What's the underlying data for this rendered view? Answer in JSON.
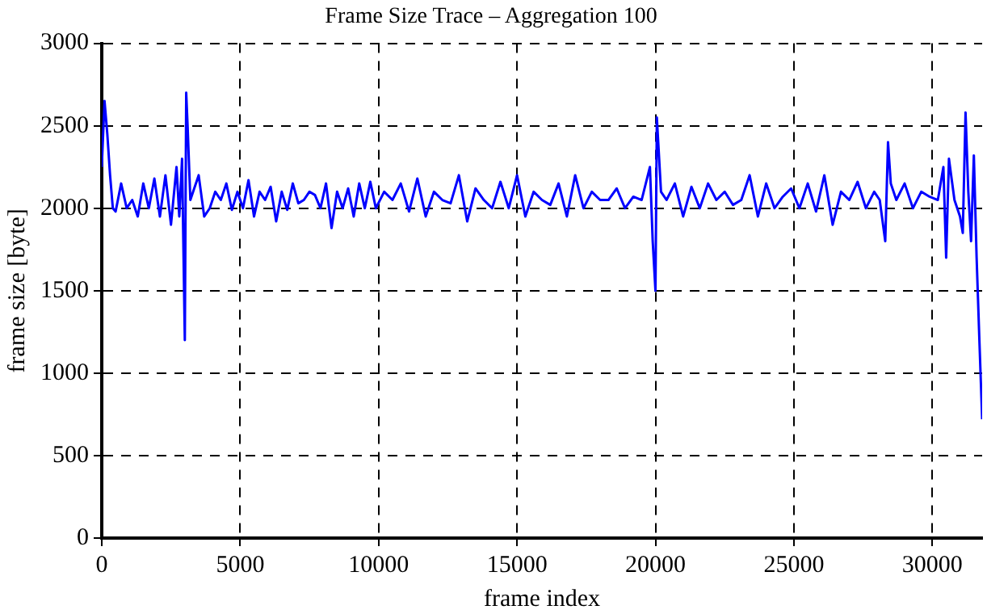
{
  "chart_data": {
    "type": "line",
    "title": "Frame Size Trace – Aggregation 100",
    "xlabel": "frame index",
    "ylabel": "frame size [byte]",
    "xlim": [
      0,
      31800
    ],
    "ylim": [
      0,
      3000
    ],
    "xticks": [
      0,
      5000,
      10000,
      15000,
      20000,
      25000,
      30000
    ],
    "yticks": [
      0,
      500,
      1000,
      1500,
      2000,
      2500,
      3000
    ],
    "grid": true,
    "marker": "none",
    "line_style": "solid",
    "series": [
      {
        "color": "#0000ff",
        "x": [
          0,
          100,
          200,
          300,
          400,
          500,
          700,
          900,
          1100,
          1300,
          1500,
          1700,
          1900,
          2100,
          2300,
          2500,
          2700,
          2800,
          2900,
          3000,
          3050,
          3100,
          3200,
          3300,
          3500,
          3700,
          3900,
          4100,
          4300,
          4500,
          4700,
          4900,
          5100,
          5300,
          5500,
          5700,
          5900,
          6100,
          6300,
          6500,
          6700,
          6900,
          7100,
          7300,
          7500,
          7700,
          7900,
          8100,
          8300,
          8500,
          8700,
          8900,
          9100,
          9300,
          9500,
          9700,
          9900,
          10200,
          10500,
          10800,
          11100,
          11400,
          11700,
          12000,
          12300,
          12600,
          12900,
          13200,
          13500,
          13800,
          14100,
          14400,
          14700,
          15000,
          15300,
          15600,
          15900,
          16200,
          16500,
          16800,
          17100,
          17400,
          17700,
          18000,
          18300,
          18600,
          18900,
          19200,
          19500,
          19800,
          19900,
          20000,
          20050,
          20100,
          20200,
          20400,
          20700,
          21000,
          21300,
          21600,
          21900,
          22200,
          22500,
          22800,
          23100,
          23400,
          23700,
          24000,
          24300,
          24600,
          24900,
          25200,
          25500,
          25800,
          26100,
          26400,
          26700,
          27000,
          27300,
          27600,
          27900,
          28100,
          28300,
          28400,
          28500,
          28700,
          29000,
          29300,
          29600,
          29900,
          30200,
          30400,
          30500,
          30600,
          30800,
          31000,
          31100,
          31200,
          31300,
          31400,
          31500,
          31600,
          31700,
          31800
        ],
        "values": [
          2250,
          2650,
          2450,
          2200,
          2000,
          1980,
          2150,
          2000,
          2050,
          1950,
          2150,
          2000,
          2180,
          1950,
          2200,
          1900,
          2250,
          1950,
          2300,
          1200,
          2700,
          2500,
          2050,
          2100,
          2200,
          1950,
          2000,
          2100,
          2050,
          2150,
          1990,
          2100,
          2000,
          2170,
          1950,
          2100,
          2050,
          2130,
          1920,
          2100,
          1990,
          2150,
          2030,
          2050,
          2100,
          2080,
          2000,
          2150,
          1880,
          2100,
          2000,
          2120,
          1950,
          2150,
          2000,
          2160,
          2000,
          2100,
          2050,
          2150,
          1980,
          2180,
          1950,
          2100,
          2050,
          2030,
          2200,
          1920,
          2120,
          2050,
          2000,
          2160,
          2000,
          2200,
          1950,
          2100,
          2050,
          2020,
          2150,
          1950,
          2200,
          2000,
          2100,
          2050,
          2050,
          2120,
          2000,
          2070,
          2050,
          2250,
          1800,
          1500,
          2550,
          2400,
          2100,
          2050,
          2150,
          1950,
          2130,
          2000,
          2150,
          2050,
          2100,
          2020,
          2050,
          2200,
          1950,
          2150,
          2000,
          2070,
          2120,
          2000,
          2150,
          1980,
          2200,
          1900,
          2100,
          2050,
          2160,
          2000,
          2100,
          2050,
          1800,
          2400,
          2150,
          2050,
          2150,
          2000,
          2100,
          2070,
          2050,
          2250,
          1700,
          2300,
          2050,
          1950,
          1850,
          2580,
          2100,
          1800,
          2320,
          1700,
          1200,
          720
        ]
      }
    ]
  }
}
